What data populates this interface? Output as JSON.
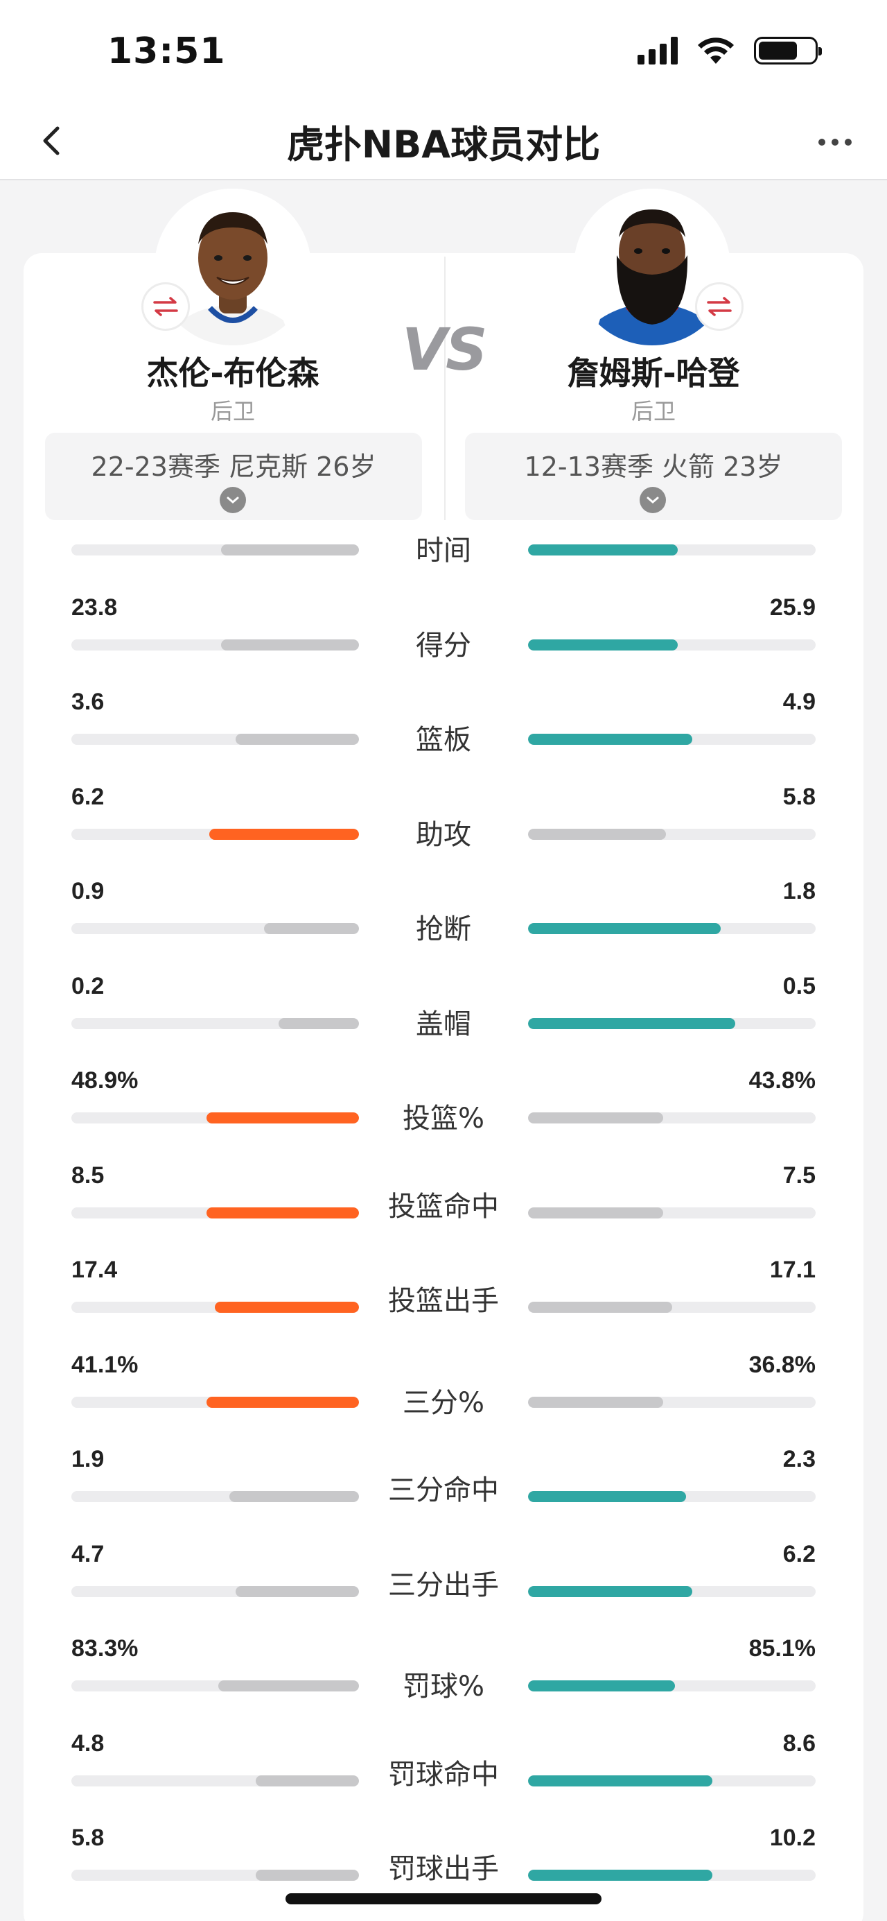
{
  "status_bar": {
    "time": "13:51"
  },
  "nav": {
    "title": "虎扑NBA球员对比"
  },
  "vs_text": "VS",
  "players": {
    "left": {
      "name": "杰伦-布伦森",
      "position": "后卫",
      "season": "22-23赛季 尼克斯 26岁",
      "jersey_color": "#f4f4f4",
      "trim_color": "#1d4fa3"
    },
    "right": {
      "name": "詹姆斯-哈登",
      "position": "后卫",
      "season": "12-13赛季 火箭 23岁",
      "jersey_color": "#1d5fb8",
      "trim_color": "#d9242e"
    }
  },
  "colors": {
    "left_win": "#ff6321",
    "right_win": "#2fa7a3",
    "lose": "#c8c8ca",
    "track": "#ececee",
    "swap_icon": "#d43a45"
  },
  "stats": [
    {
      "label": "时间",
      "left": "",
      "right": "",
      "left_pct": 0.48,
      "right_pct": 0.52,
      "winner": "right"
    },
    {
      "label": "得分",
      "left": "23.8",
      "right": "25.9",
      "left_pct": 0.48,
      "right_pct": 0.52,
      "winner": "right"
    },
    {
      "label": "篮板",
      "left": "3.6",
      "right": "4.9",
      "left_pct": 0.43,
      "right_pct": 0.57,
      "winner": "right"
    },
    {
      "label": "助攻",
      "left": "6.2",
      "right": "5.8",
      "left_pct": 0.52,
      "right_pct": 0.48,
      "winner": "left"
    },
    {
      "label": "抢断",
      "left": "0.9",
      "right": "1.8",
      "left_pct": 0.33,
      "right_pct": 0.67,
      "winner": "right"
    },
    {
      "label": "盖帽",
      "left": "0.2",
      "right": "0.5",
      "left_pct": 0.28,
      "right_pct": 0.72,
      "winner": "right"
    },
    {
      "label": "投篮%",
      "left": "48.9%",
      "right": "43.8%",
      "left_pct": 0.53,
      "right_pct": 0.47,
      "winner": "left"
    },
    {
      "label": "投篮命中",
      "left": "8.5",
      "right": "7.5",
      "left_pct": 0.53,
      "right_pct": 0.47,
      "winner": "left"
    },
    {
      "label": "投篮出手",
      "left": "17.4",
      "right": "17.1",
      "left_pct": 0.5,
      "right_pct": 0.5,
      "winner": "left"
    },
    {
      "label": "三分%",
      "left": "41.1%",
      "right": "36.8%",
      "left_pct": 0.53,
      "right_pct": 0.47,
      "winner": "left"
    },
    {
      "label": "三分命中",
      "left": "1.9",
      "right": "2.3",
      "left_pct": 0.45,
      "right_pct": 0.55,
      "winner": "right"
    },
    {
      "label": "三分出手",
      "left": "4.7",
      "right": "6.2",
      "left_pct": 0.43,
      "right_pct": 0.57,
      "winner": "right"
    },
    {
      "label": "罚球%",
      "left": "83.3%",
      "right": "85.1%",
      "left_pct": 0.49,
      "right_pct": 0.51,
      "winner": "right"
    },
    {
      "label": "罚球命中",
      "left": "4.8",
      "right": "8.6",
      "left_pct": 0.36,
      "right_pct": 0.64,
      "winner": "right"
    },
    {
      "label": "罚球出手",
      "left": "5.8",
      "right": "10.2",
      "left_pct": 0.36,
      "right_pct": 0.64,
      "winner": "right"
    }
  ]
}
